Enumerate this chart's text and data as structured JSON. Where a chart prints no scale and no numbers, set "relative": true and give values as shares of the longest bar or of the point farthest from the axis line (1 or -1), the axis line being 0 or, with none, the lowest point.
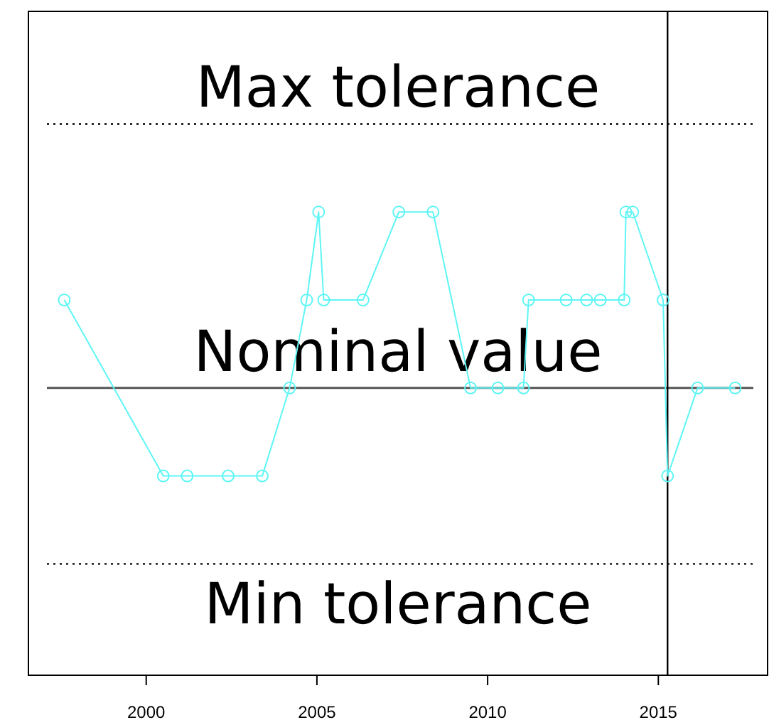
{
  "chart_data": {
    "type": "line",
    "relative": true,
    "marker": "circle",
    "grid": false,
    "x": [
      1997.6,
      2000.5,
      2001.2,
      2002.4,
      2003.4,
      2004.2,
      2004.7,
      2005.05,
      2005.2,
      2006.35,
      2007.4,
      2008.4,
      2009.5,
      2010.3,
      2011.05,
      2011.2,
      2012.3,
      2012.9,
      2013.3,
      2014.0,
      2014.05,
      2014.25,
      2015.14,
      2015.27,
      2016.15,
      2017.25
    ],
    "series": [
      {
        "color": "#5ff5f5",
        "values": [
          0.5,
          -0.5,
          -0.5,
          -0.5,
          -0.5,
          0,
          0.5,
          1,
          0.5,
          0.5,
          1,
          1,
          0,
          0,
          0,
          0.5,
          0.5,
          0.5,
          0.5,
          0.5,
          1,
          1,
          0.5,
          -0.5,
          0,
          0
        ]
      }
    ],
    "xlim": [
      1996.55,
      2018.2
    ],
    "xticks": [
      2000,
      2005,
      2010,
      2015
    ],
    "ref_lines": [
      {
        "axis": "y",
        "value": 1.5,
        "label": "Max tolerance",
        "color": "#000000",
        "line_style": "dotted"
      },
      {
        "axis": "y",
        "value": 0,
        "label": "Nominal value",
        "color": "#555555",
        "line_style": "solid"
      },
      {
        "axis": "y",
        "value": -1,
        "label": "Min tolerance",
        "color": "#000000",
        "line_style": "dotted"
      },
      {
        "axis": "x",
        "value": 2015.27,
        "color": "#000000",
        "line_style": "solid"
      }
    ]
  }
}
